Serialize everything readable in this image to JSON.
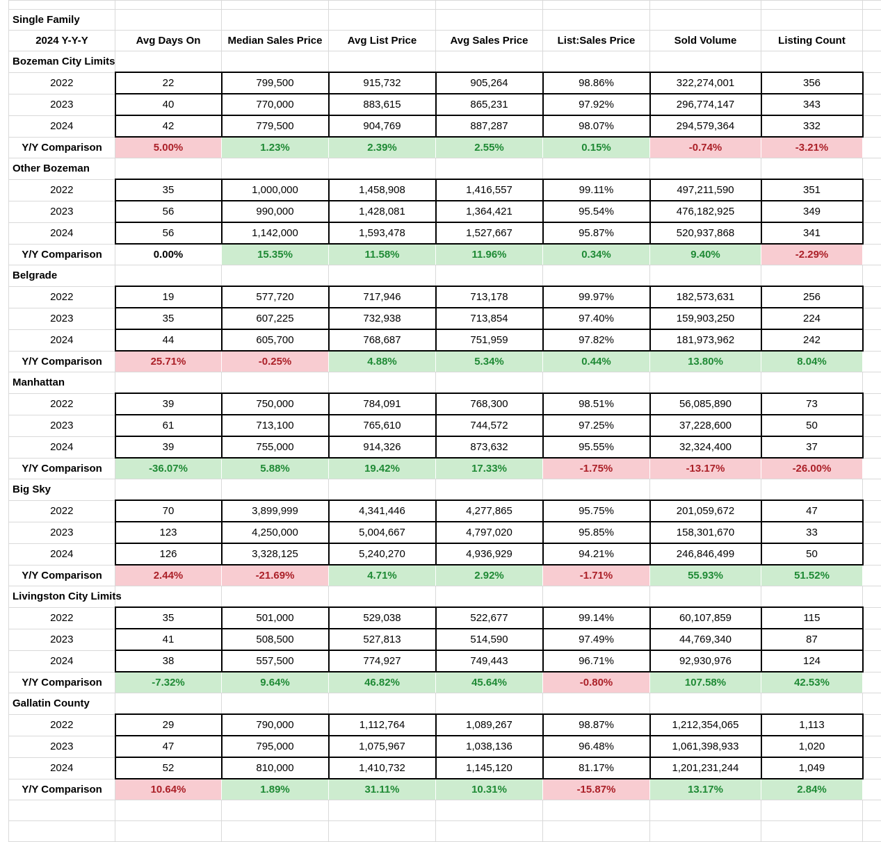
{
  "table": {
    "title": "Single Family",
    "period_label": "2024 Y-Y-Y",
    "yy_label": "Y/Y Comparison",
    "columns": [
      "Avg Days On",
      "Median Sales Price",
      "Avg List Price",
      "Avg Sales Price",
      "List:Sales Price",
      "Sold Volume",
      "Listing Count"
    ],
    "colors": {
      "positive_fill": "#cdeccf",
      "positive_text": "#1f8a35",
      "negative_fill": "#f8ccd1",
      "negative_text": "#ab2028"
    },
    "sections": [
      {
        "name": "Bozeman City Limits",
        "rows": [
          {
            "year": "2022",
            "values": [
              "22",
              "799,500",
              "915,732",
              "905,264",
              "98.86%",
              "322,274,001",
              "356"
            ]
          },
          {
            "year": "2023",
            "values": [
              "40",
              "770,000",
              "883,615",
              "865,231",
              "97.92%",
              "296,774,147",
              "343"
            ]
          },
          {
            "year": "2024",
            "values": [
              "42",
              "779,500",
              "904,769",
              "887,287",
              "98.07%",
              "294,579,364",
              "332"
            ]
          }
        ],
        "yy": {
          "values": [
            "5.00%",
            "1.23%",
            "2.39%",
            "2.55%",
            "0.15%",
            "-0.74%",
            "-3.21%"
          ],
          "colors": [
            "red",
            "green",
            "green",
            "green",
            "green",
            "red",
            "red"
          ]
        }
      },
      {
        "name": "Other Bozeman",
        "rows": [
          {
            "year": "2022",
            "values": [
              "35",
              "1,000,000",
              "1,458,908",
              "1,416,557",
              "99.11%",
              "497,211,590",
              "351"
            ]
          },
          {
            "year": "2023",
            "values": [
              "56",
              "990,000",
              "1,428,081",
              "1,364,421",
              "95.54%",
              "476,182,925",
              "349"
            ]
          },
          {
            "year": "2024",
            "values": [
              "56",
              "1,142,000",
              "1,593,478",
              "1,527,667",
              "95.87%",
              "520,937,868",
              "341"
            ]
          }
        ],
        "yy": {
          "values": [
            "0.00%",
            "15.35%",
            "11.58%",
            "11.96%",
            "0.34%",
            "9.40%",
            "-2.29%"
          ],
          "colors": [
            "neutral",
            "green",
            "green",
            "green",
            "green",
            "green",
            "red"
          ]
        }
      },
      {
        "name": "Belgrade",
        "rows": [
          {
            "year": "2022",
            "values": [
              "19",
              "577,720",
              "717,946",
              "713,178",
              "99.97%",
              "182,573,631",
              "256"
            ]
          },
          {
            "year": "2023",
            "values": [
              "35",
              "607,225",
              "732,938",
              "713,854",
              "97.40%",
              "159,903,250",
              "224"
            ]
          },
          {
            "year": "2024",
            "values": [
              "44",
              "605,700",
              "768,687",
              "751,959",
              "97.82%",
              "181,973,962",
              "242"
            ]
          }
        ],
        "yy": {
          "values": [
            "25.71%",
            "-0.25%",
            "4.88%",
            "5.34%",
            "0.44%",
            "13.80%",
            "8.04%"
          ],
          "colors": [
            "red",
            "red",
            "green",
            "green",
            "green",
            "green",
            "green"
          ]
        }
      },
      {
        "name": "Manhattan",
        "rows": [
          {
            "year": "2022",
            "values": [
              "39",
              "750,000",
              "784,091",
              "768,300",
              "98.51%",
              "56,085,890",
              "73"
            ]
          },
          {
            "year": "2023",
            "values": [
              "61",
              "713,100",
              "765,610",
              "744,572",
              "97.25%",
              "37,228,600",
              "50"
            ]
          },
          {
            "year": "2024",
            "values": [
              "39",
              "755,000",
              "914,326",
              "873,632",
              "95.55%",
              "32,324,400",
              "37"
            ]
          }
        ],
        "yy": {
          "values": [
            "-36.07%",
            "5.88%",
            "19.42%",
            "17.33%",
            "-1.75%",
            "-13.17%",
            "-26.00%"
          ],
          "colors": [
            "green",
            "green",
            "green",
            "green",
            "red",
            "red",
            "red"
          ]
        }
      },
      {
        "name": "Big Sky",
        "rows": [
          {
            "year": "2022",
            "values": [
              "70",
              "3,899,999",
              "4,341,446",
              "4,277,865",
              "95.75%",
              "201,059,672",
              "47"
            ]
          },
          {
            "year": "2023",
            "values": [
              "123",
              "4,250,000",
              "5,004,667",
              "4,797,020",
              "95.85%",
              "158,301,670",
              "33"
            ]
          },
          {
            "year": "2024",
            "values": [
              "126",
              "3,328,125",
              "5,240,270",
              "4,936,929",
              "94.21%",
              "246,846,499",
              "50"
            ]
          }
        ],
        "yy": {
          "values": [
            "2.44%",
            "-21.69%",
            "4.71%",
            "2.92%",
            "-1.71%",
            "55.93%",
            "51.52%"
          ],
          "colors": [
            "red",
            "red",
            "green",
            "green",
            "red",
            "green",
            "green"
          ]
        }
      },
      {
        "name": "Livingston City Limits",
        "rows": [
          {
            "year": "2022",
            "values": [
              "35",
              "501,000",
              "529,038",
              "522,677",
              "99.14%",
              "60,107,859",
              "115"
            ]
          },
          {
            "year": "2023",
            "values": [
              "41",
              "508,500",
              "527,813",
              "514,590",
              "97.49%",
              "44,769,340",
              "87"
            ]
          },
          {
            "year": "2024",
            "values": [
              "38",
              "557,500",
              "774,927",
              "749,443",
              "96.71%",
              "92,930,976",
              "124"
            ]
          }
        ],
        "yy": {
          "values": [
            "-7.32%",
            "9.64%",
            "46.82%",
            "45.64%",
            "-0.80%",
            "107.58%",
            "42.53%"
          ],
          "colors": [
            "green",
            "green",
            "green",
            "green",
            "red",
            "green",
            "green"
          ]
        }
      },
      {
        "name": "Gallatin County",
        "rows": [
          {
            "year": "2022",
            "values": [
              "29",
              "790,000",
              "1,112,764",
              "1,089,267",
              "98.87%",
              "1,212,354,065",
              "1,113"
            ]
          },
          {
            "year": "2023",
            "values": [
              "47",
              "795,000",
              "1,075,967",
              "1,038,136",
              "96.48%",
              "1,061,398,933",
              "1,020"
            ]
          },
          {
            "year": "2024",
            "values": [
              "52",
              "810,000",
              "1,410,732",
              "1,145,120",
              "81.17%",
              "1,201,231,244",
              "1,049"
            ]
          }
        ],
        "yy": {
          "values": [
            "10.64%",
            "1.89%",
            "31.11%",
            "10.31%",
            "-15.87%",
            "13.17%",
            "2.84%"
          ],
          "colors": [
            "red",
            "green",
            "green",
            "green",
            "red",
            "green",
            "green"
          ]
        }
      }
    ]
  }
}
